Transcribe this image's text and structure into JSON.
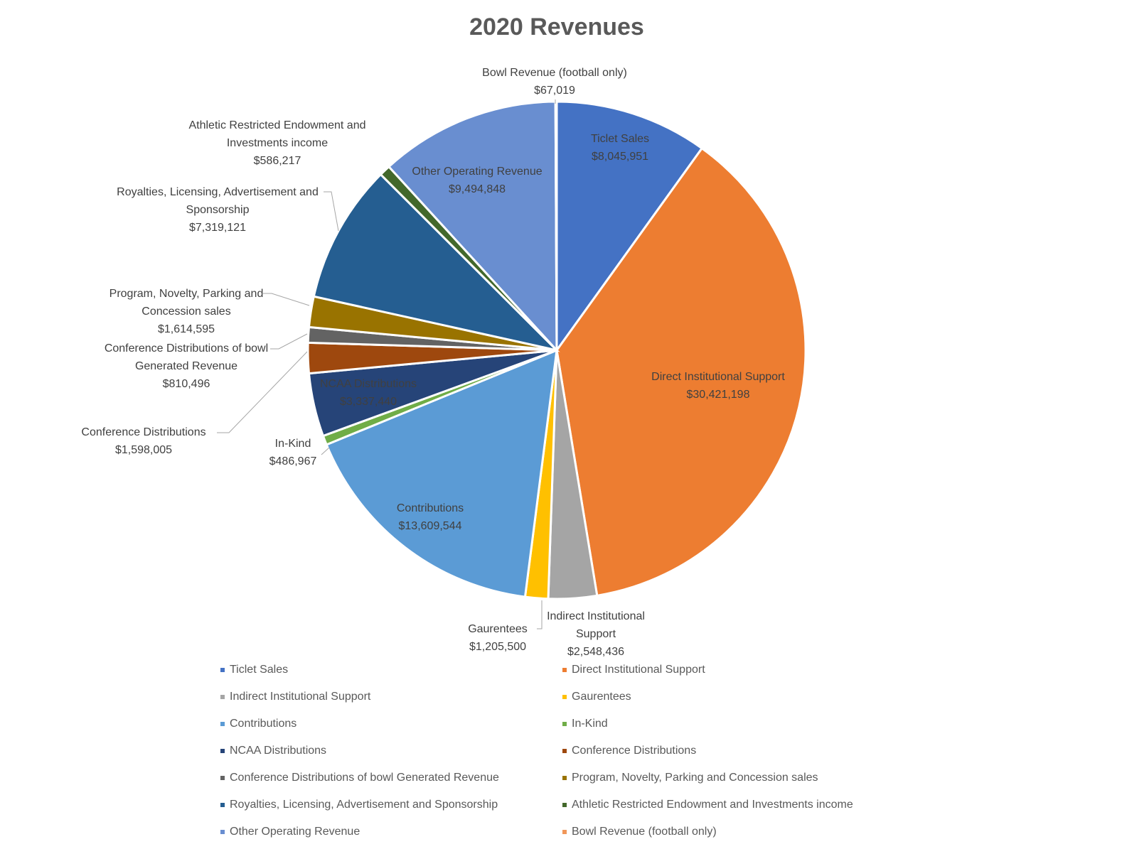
{
  "chart_data": {
    "type": "pie",
    "title": "2020 Revenues",
    "categories": [
      "Ticlet Sales",
      "Direct Institutional Support",
      "Indirect Institutional Support",
      "Gaurentees",
      "Contributions",
      "In-Kind",
      "NCAA Distributions",
      "Conference Distributions",
      "Conference Distributions of bowl Generated Revenue",
      "Program, Novelty, Parking and Concession sales",
      "Royalties, Licensing, Advertisement and Sponsorship",
      "Athletic Restricted Endowment and Investments income",
      "Other Operating Revenue",
      "Bowl Revenue (football only)"
    ],
    "values": [
      8045951,
      30421198,
      2548436,
      1205500,
      13609544,
      486967,
      3337440,
      1598005,
      810496,
      1614595,
      7319121,
      586217,
      9494848,
      67019
    ],
    "value_labels": [
      "$8,045,951",
      "$30,421,198",
      "$2,548,436",
      "$1,205,500",
      "$13,609,544",
      "$486,967",
      "$3,337,440",
      "$1,598,005",
      "$810,496",
      "$1,614,595",
      "$7,319,121",
      "$586,217",
      "$9,494,848",
      "$67,019"
    ],
    "colors": [
      "#4472c4",
      "#ed7d31",
      "#a5a5a5",
      "#ffc000",
      "#5b9bd5",
      "#70ad47",
      "#264478",
      "#9e480e",
      "#636363",
      "#997300",
      "#255e91",
      "#43682b",
      "#698ed0",
      "#f1975a"
    ],
    "legend": "bottom"
  }
}
